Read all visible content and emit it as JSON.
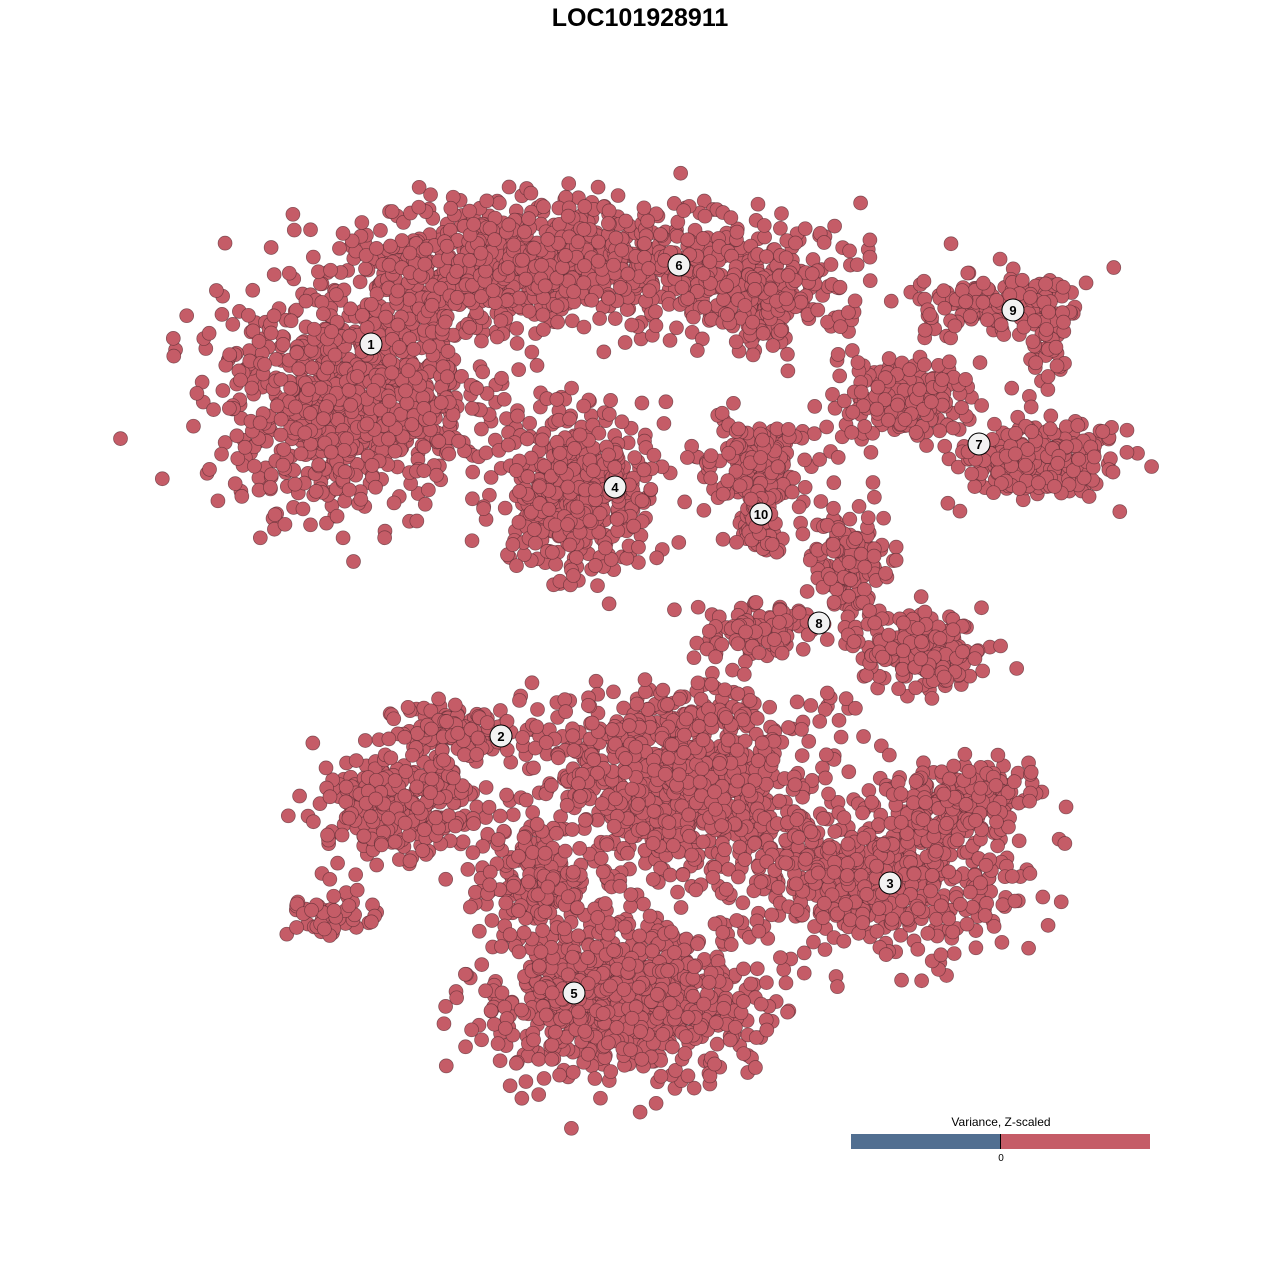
{
  "chart_data": {
    "type": "scatter",
    "title": "LOC101928911",
    "xlabel": "",
    "ylabel": "",
    "grid": false,
    "point_color": "#c55c67",
    "point_edge_color": "#5a2c33",
    "clusters": [
      {
        "label": "1",
        "x": -29.4,
        "y": 29.6
      },
      {
        "label": "2",
        "x": -16.4,
        "y": -9.6
      },
      {
        "label": "3",
        "x": 22.5,
        "y": -24.3
      },
      {
        "label": "4",
        "x": -5.0,
        "y": 15.3
      },
      {
        "label": "5",
        "x": -9.1,
        "y": -35.3
      },
      {
        "label": "6",
        "x": 1.4,
        "y": 37.5
      },
      {
        "label": "7",
        "x": 31.4,
        "y": 19.6
      },
      {
        "label": "8",
        "x": 15.4,
        "y": 1.7
      },
      {
        "label": "9",
        "x": 34.8,
        "y": 33.0
      },
      {
        "label": "10",
        "x": 9.6,
        "y": 12.6
      }
    ],
    "legend": {
      "title": "Variance, Z-scaled",
      "tick": "0",
      "low_color": "#516f91",
      "high_color": "#c55c67",
      "placement": "bottom-right"
    }
  }
}
